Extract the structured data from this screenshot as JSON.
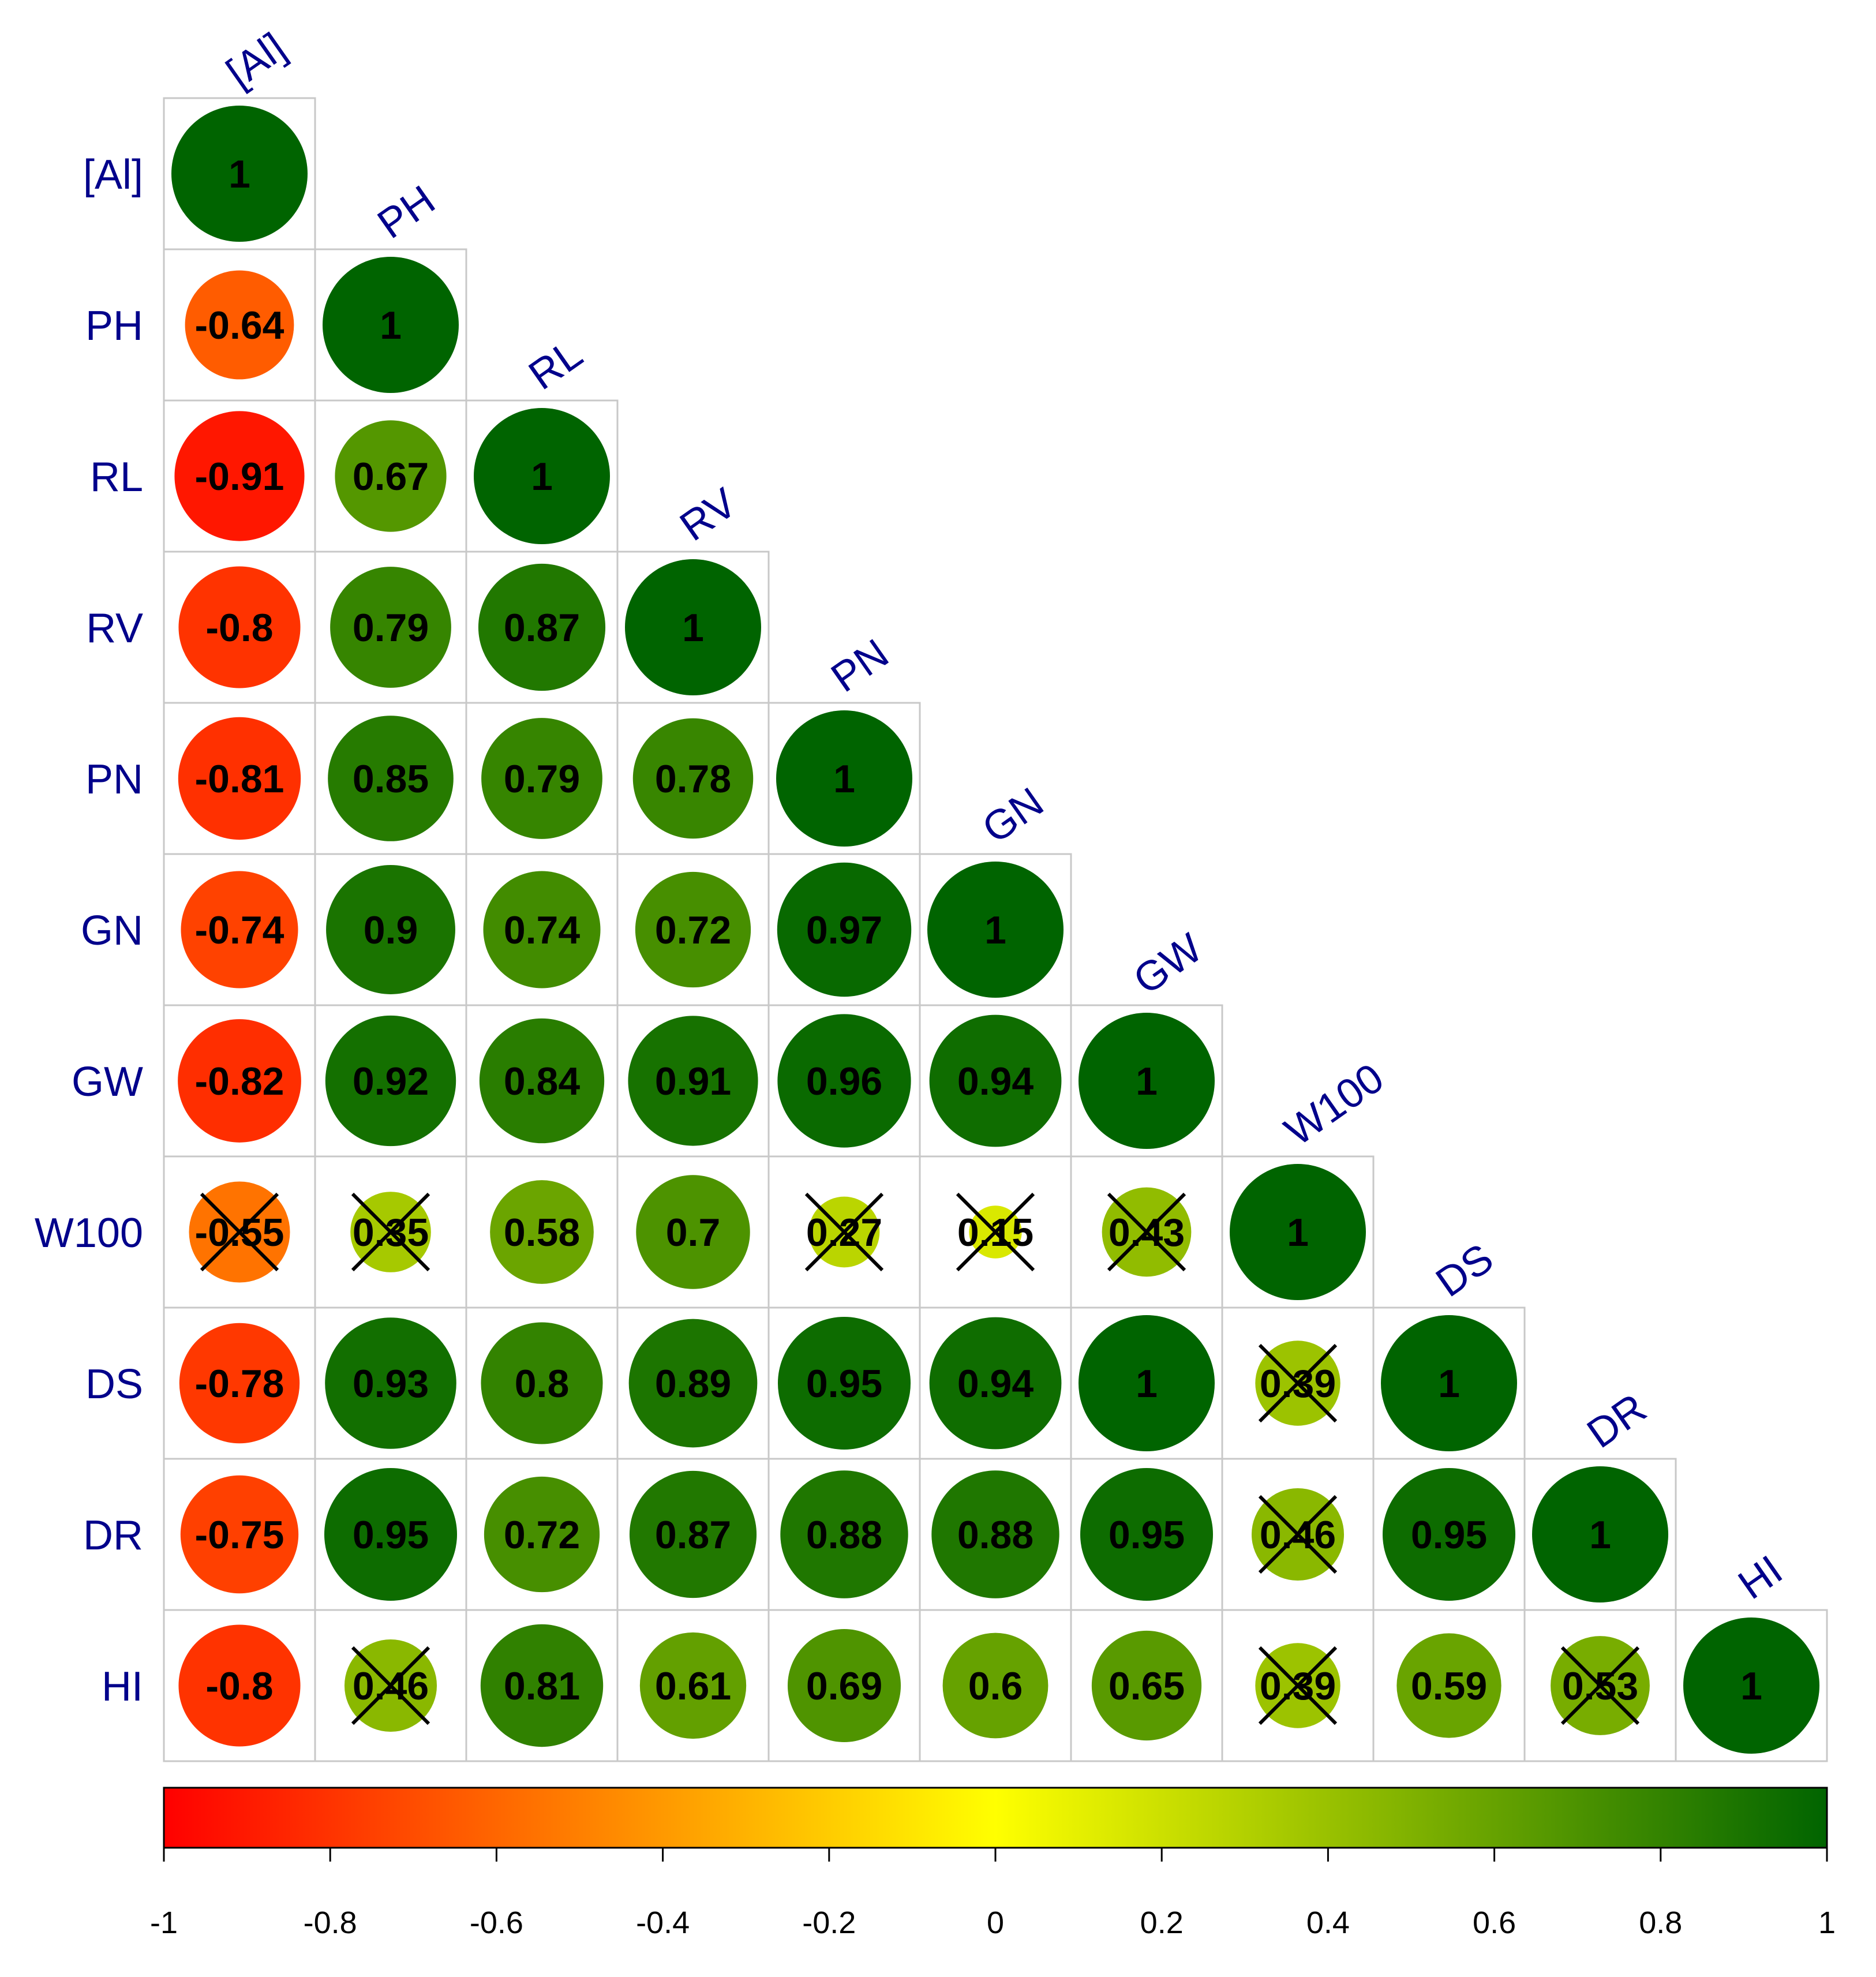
{
  "chart_data": {
    "type": "heatmap",
    "variables": [
      "[Al]",
      "PH",
      "RL",
      "RV",
      "PN",
      "GN",
      "GW",
      "W100",
      "DS",
      "DR",
      "HI"
    ],
    "matrix_lower": [
      [
        1
      ],
      [
        -0.64,
        1
      ],
      [
        -0.91,
        0.67,
        1
      ],
      [
        -0.8,
        0.79,
        0.87,
        1
      ],
      [
        -0.81,
        0.85,
        0.79,
        0.78,
        1
      ],
      [
        -0.74,
        0.9,
        0.74,
        0.72,
        0.97,
        1
      ],
      [
        -0.82,
        0.92,
        0.84,
        0.91,
        0.96,
        0.94,
        1
      ],
      [
        -0.55,
        0.35,
        0.58,
        0.7,
        0.27,
        0.15,
        0.43,
        1
      ],
      [
        -0.78,
        0.93,
        0.8,
        0.89,
        0.95,
        0.94,
        1,
        0.39,
        1
      ],
      [
        -0.75,
        0.95,
        0.72,
        0.87,
        0.88,
        0.88,
        0.95,
        0.46,
        0.95,
        1
      ],
      [
        -0.8,
        0.46,
        0.81,
        0.61,
        0.69,
        0.6,
        0.65,
        0.39,
        0.59,
        0.53,
        1
      ]
    ],
    "labels_lower": [
      [
        "1"
      ],
      [
        "-0.64",
        "1"
      ],
      [
        "-0.91",
        "0.67",
        "1"
      ],
      [
        "-0.8",
        "0.79",
        "0.87",
        "1"
      ],
      [
        "-0.81",
        "0.85",
        "0.79",
        "0.78",
        "1"
      ],
      [
        "-0.74",
        "0.9",
        "0.74",
        "0.72",
        "0.97",
        "1"
      ],
      [
        "-0.82",
        "0.92",
        "0.84",
        "0.91",
        "0.96",
        "0.94",
        "1"
      ],
      [
        "-0.55",
        "0.35",
        "0.58",
        "0.7",
        "0.27",
        "0.15",
        "0.43",
        "1"
      ],
      [
        "-0.78",
        "0.93",
        "0.8",
        "0.89",
        "0.95",
        "0.94",
        "1",
        "0.39",
        "1"
      ],
      [
        "-0.75",
        "0.95",
        "0.72",
        "0.87",
        "0.88",
        "0.88",
        "0.95",
        "0.46",
        "0.95",
        "1"
      ],
      [
        "-0.8",
        "0.46",
        "0.81",
        "0.61",
        "0.69",
        "0.6",
        "0.65",
        "0.39",
        "0.59",
        "0.53",
        "1"
      ]
    ],
    "not_significant": [
      [
        7,
        0
      ],
      [
        7,
        1
      ],
      [
        7,
        4
      ],
      [
        7,
        5
      ],
      [
        7,
        6
      ],
      [
        8,
        7
      ],
      [
        9,
        7
      ],
      [
        10,
        1
      ],
      [
        10,
        7
      ],
      [
        10,
        9
      ]
    ],
    "colorbar": {
      "range": [
        -1,
        1
      ],
      "ticks": [
        "-1",
        "-0.8",
        "-0.6",
        "-0.4",
        "-0.2",
        "0",
        "0.2",
        "0.4",
        "0.6",
        "0.8",
        "1"
      ],
      "colors": [
        "#FF0000",
        "#FFFF00",
        "#006400"
      ]
    },
    "label_color": "#00008B",
    "grid_color": "#C8C8C8"
  }
}
